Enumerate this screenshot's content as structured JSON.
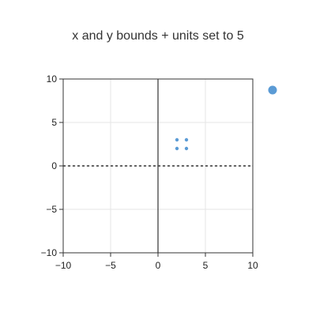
{
  "chart_data": {
    "type": "scatter",
    "title": "x and y bounds + units set to 5",
    "xlabel": "",
    "ylabel": "",
    "xlim": [
      -10,
      10
    ],
    "ylim": [
      -10,
      10
    ],
    "grid": true,
    "x_ticks": [
      {
        "value": -10,
        "label": "−10"
      },
      {
        "value": -5,
        "label": "−5"
      },
      {
        "value": 0,
        "label": "0"
      },
      {
        "value": 5,
        "label": "5"
      },
      {
        "value": 10,
        "label": "10"
      }
    ],
    "y_ticks": [
      {
        "value": -10,
        "label": "−10"
      },
      {
        "value": -5,
        "label": "−5"
      },
      {
        "value": 0,
        "label": "0"
      },
      {
        "value": 5,
        "label": "5"
      },
      {
        "value": 10,
        "label": "10"
      }
    ],
    "series": [
      {
        "color": "#5b9bd5",
        "points": [
          {
            "x": 2,
            "y": 3
          },
          {
            "x": 3,
            "y": 3
          },
          {
            "x": 2,
            "y": 2
          },
          {
            "x": 3,
            "y": 2
          }
        ]
      }
    ],
    "reference_line": {
      "y": 0,
      "style": "dashed",
      "color": "#333333"
    },
    "zero_axis_line": {
      "x": 0,
      "color": "#333333"
    },
    "outside_point": {
      "color": "#5b9bd5"
    },
    "colors": {
      "grid": "#e6e6e6",
      "frame": "#333333",
      "text": "#222222",
      "title": "#333333"
    }
  }
}
